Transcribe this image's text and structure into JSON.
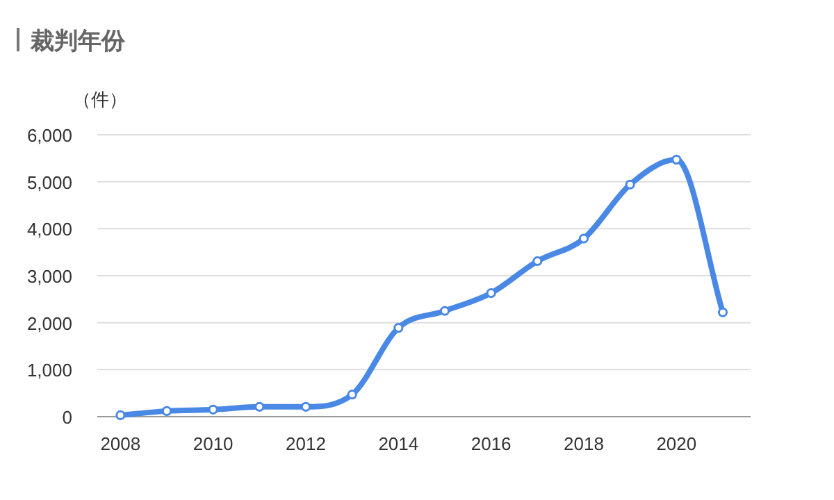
{
  "chart_data": {
    "type": "line",
    "title": "裁判年份",
    "ylabel": "（件）",
    "x": [
      2008,
      2009,
      2010,
      2011,
      2012,
      2013,
      2014,
      2015,
      2016,
      2017,
      2018,
      2019,
      2020,
      2021
    ],
    "series": [
      {
        "color": "#4a88e6",
        "values": [
          30,
          120,
          150,
          210,
          210,
          470,
          1890,
          2250,
          2630,
          3310,
          3790,
          4940,
          5470,
          2220
        ]
      }
    ],
    "xlim": [
      2007.5,
      2021.6
    ],
    "xticks": [
      2008,
      2010,
      2012,
      2014,
      2016,
      2018,
      2020
    ],
    "ylim": [
      0,
      6000
    ],
    "yticks": [
      {
        "value": 0,
        "label": "0"
      },
      {
        "value": 1000,
        "label": "1,000"
      },
      {
        "value": 2000,
        "label": "2,000"
      },
      {
        "value": 3000,
        "label": "3,000"
      },
      {
        "value": 4000,
        "label": "4,000"
      },
      {
        "value": 5000,
        "label": "5,000"
      },
      {
        "value": 6000,
        "label": "6,000"
      }
    ],
    "grid": "y",
    "marker": "circle",
    "line_style": "solid"
  }
}
